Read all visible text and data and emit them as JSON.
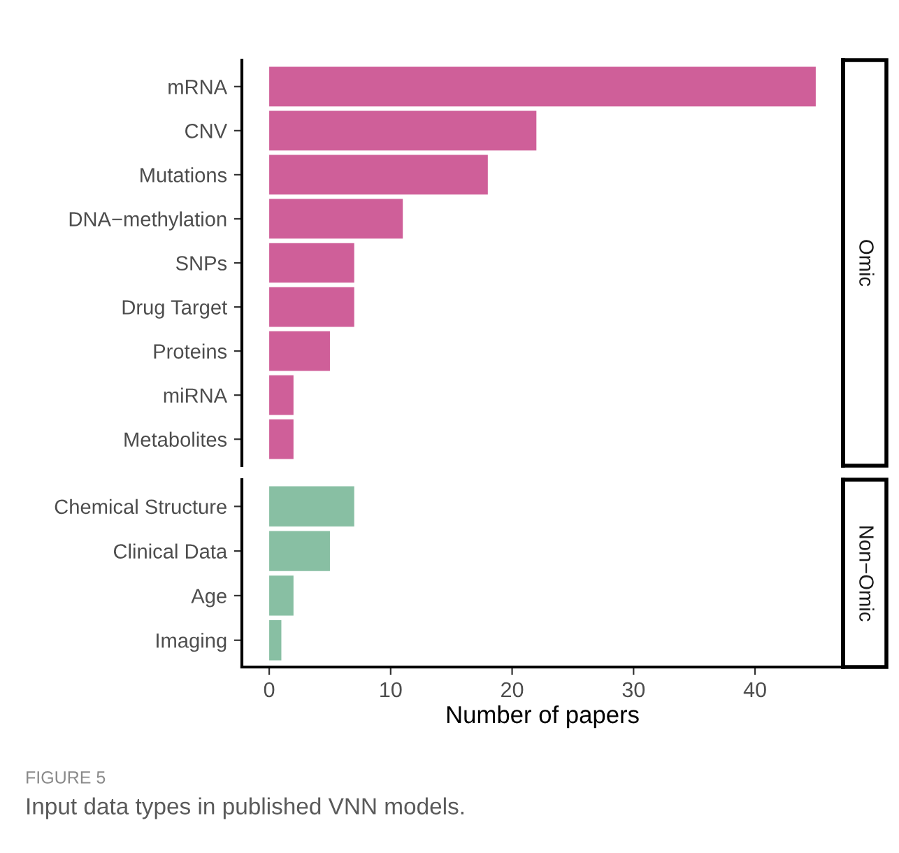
{
  "chart_data": [
    {
      "type": "bar",
      "orientation": "horizontal",
      "y2label": "Omic",
      "categories": [
        "mRNA",
        "CNV",
        "Mutations",
        "DNA−methylation",
        "SNPs",
        "Drug Target",
        "Proteins",
        "miRNA",
        "Metabolites"
      ],
      "values": [
        45,
        22,
        18,
        11,
        7,
        7,
        5,
        2,
        2
      ],
      "color": "#cf5f99",
      "xlim": [
        -2.25,
        47.25
      ],
      "tick_labels": "y",
      "grid": false,
      "legend": false
    },
    {
      "type": "bar",
      "orientation": "horizontal",
      "y2label": "Non−Omic",
      "categories": [
        "Chemical Structure",
        "Clinical Data",
        "Age",
        "Imaging"
      ],
      "values": [
        7,
        5,
        2,
        1
      ],
      "color": "#88bfa3",
      "xlim": [
        -2.25,
        47.25
      ],
      "xticks": [
        0,
        10,
        20,
        30,
        40
      ],
      "xlabel": "Number of papers",
      "grid": false,
      "legend": false,
      "annotations": [
        "FIGURE 5",
        "Input data types in published VNN models."
      ]
    }
  ]
}
